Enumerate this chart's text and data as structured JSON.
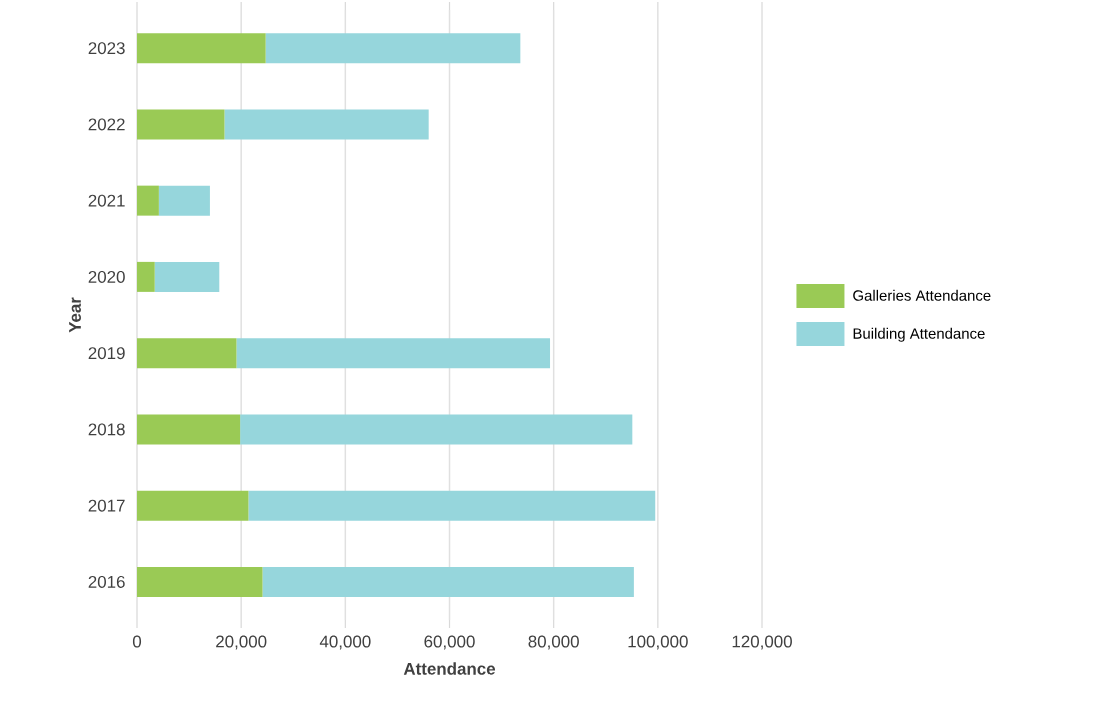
{
  "chart_data": {
    "type": "bar",
    "orientation": "horizontal",
    "stacked": true,
    "xlabel": "Attendance",
    "ylabel": "Year",
    "categories": [
      "2023",
      "2022",
      "2021",
      "2020",
      "2019",
      "2018",
      "2017",
      "2016"
    ],
    "series": [
      {
        "name": "Galleries Attendance",
        "color": "#9aca55",
        "values": [
          24700,
          16800,
          4200,
          3400,
          19100,
          19800,
          21400,
          24100
        ]
      },
      {
        "name": "Building Attendance",
        "color": "#96d6dc",
        "values": [
          48900,
          39200,
          9800,
          12400,
          60200,
          75300,
          78100,
          71300
        ]
      }
    ],
    "xlim": [
      0,
      120000
    ],
    "xticks": [
      0,
      {
        "value": 20000,
        "label": "20,000"
      },
      {
        "value": 40000,
        "label": "40,000"
      },
      {
        "value": 60000,
        "label": "60,000"
      },
      {
        "value": 80000,
        "label": "80,000"
      },
      {
        "value": 100000,
        "label": "100,000"
      },
      {
        "value": 120000,
        "label": "120,000"
      }
    ],
    "grid": "x",
    "legend": "right"
  }
}
